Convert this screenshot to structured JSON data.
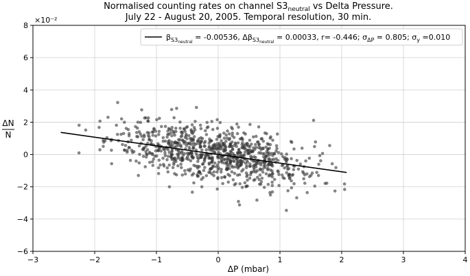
{
  "chart_data": {
    "type": "scatter",
    "title_line1": "Normalised counting rates on channel S3",
    "title_line1_sub": "neutral",
    "title_line1_end": " vs Delta Pressure.",
    "title_line2": "July 22 - August 20, 2005. Temporal resolution, 30 min.",
    "xlabel": "ΔP (mbar)",
    "ylabel_num": "ΔN",
    "ylabel_den": "N",
    "y_scale_label": "×10⁻²",
    "xlim": [
      -3,
      4
    ],
    "ylim": [
      -6,
      8
    ],
    "xticks": [
      -3,
      -2,
      -1,
      0,
      1,
      2,
      3,
      4
    ],
    "yticks": [
      -6,
      -4,
      -2,
      0,
      2,
      4,
      6,
      8
    ],
    "xtick_labels": [
      "−3",
      "−2",
      "−1",
      "0",
      "1",
      "2",
      "3",
      "4"
    ],
    "ytick_labels": [
      "−6",
      "−4",
      "−2",
      "0",
      "2",
      "4",
      "6",
      "8"
    ],
    "grid": true,
    "legend_position": "top-right",
    "legend": {
      "beta": "β",
      "s3": "S3",
      "neutral": "neutral",
      "beta_value": " = -0.00536, ",
      "dbeta": "Δβ",
      "dbeta_value": " = 0.00033, r= -0.446; σ",
      "sigma_sub": "ΔP",
      "sigma_value": " = 0.805; σ",
      "sigma_y_sub": "y",
      "sigma_y_value": " =0.010"
    },
    "fit_line": {
      "slope": -0.536,
      "intercept": 0.0,
      "x_range": [
        -2.55,
        2.08
      ]
    },
    "scatter": {
      "n_points": 900,
      "x_mean": 0.0,
      "x_sd": 0.805,
      "x_range": [
        -2.5,
        2.1
      ],
      "y_sd_residual": 0.86,
      "marker_color": "#333333",
      "marker_opacity": 0.6
    }
  }
}
